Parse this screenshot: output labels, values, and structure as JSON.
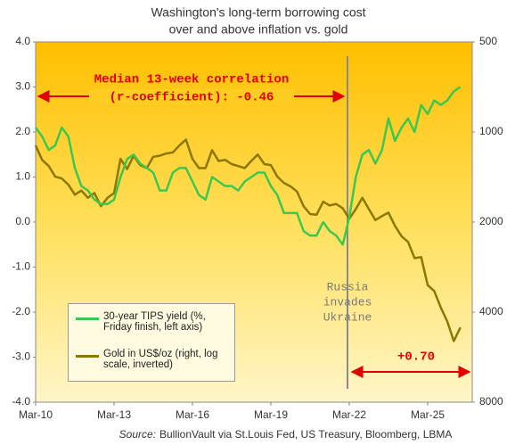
{
  "chart_data": {
    "type": "line",
    "title": [
      "Washington's long-term borrowing cost",
      "over and above inflation vs. gold"
    ],
    "categories": [
      "Mar-10",
      null,
      null,
      null,
      null,
      null,
      null,
      null,
      null,
      null,
      null,
      null,
      "Mar-13",
      null,
      null,
      null,
      null,
      null,
      null,
      null,
      null,
      null,
      null,
      null,
      "Mar-16",
      null,
      null,
      null,
      null,
      null,
      null,
      null,
      null,
      null,
      null,
      null,
      "Mar-19",
      null,
      null,
      null,
      null,
      null,
      null,
      null,
      null,
      null,
      null,
      null,
      "Mar-22",
      null,
      null,
      null,
      null,
      null,
      null,
      null,
      null,
      null,
      null,
      null,
      "Mar-25",
      null,
      null,
      null,
      null,
      null
    ],
    "series": [
      {
        "name": "30-year TIPS yield (%, Friday finish, left axis)",
        "color": "#3cc84e",
        "values": [
          2.1,
          1.9,
          1.6,
          1.7,
          2.1,
          1.9,
          1.2,
          0.8,
          0.7,
          0.5,
          0.4,
          0.4,
          0.5,
          1.0,
          1.4,
          1.5,
          1.3,
          1.2,
          1.1,
          0.7,
          0.7,
          1.1,
          1.2,
          1.2,
          0.9,
          0.6,
          0.5,
          1.0,
          0.9,
          0.8,
          0.8,
          0.7,
          0.9,
          1.0,
          1.1,
          1.1,
          0.8,
          0.6,
          0.2,
          0.2,
          0.2,
          -0.2,
          -0.3,
          -0.3,
          0.0,
          -0.2,
          -0.3,
          -0.5,
          0.1,
          1.0,
          1.5,
          1.6,
          1.3,
          1.6,
          2.3,
          1.8,
          2.1,
          2.3,
          2.0,
          2.6,
          2.4,
          2.7,
          2.6,
          2.7,
          2.9,
          3.0
        ]
      },
      {
        "name": "Gold in US$/oz (right, log scale, inverted)",
        "color": "#8a7800",
        "axis": "y2",
        "values": [
          1110,
          1240,
          1300,
          1410,
          1430,
          1500,
          1620,
          1570,
          1660,
          1600,
          1770,
          1660,
          1600,
          1230,
          1330,
          1200,
          1290,
          1320,
          1210,
          1200,
          1180,
          1170,
          1110,
          1060,
          1230,
          1320,
          1320,
          1150,
          1250,
          1240,
          1280,
          1300,
          1320,
          1250,
          1190,
          1280,
          1290,
          1410,
          1480,
          1520,
          1580,
          1770,
          1880,
          1890,
          1710,
          1760,
          1740,
          1800,
          1950,
          1810,
          1660,
          1810,
          1970,
          1910,
          1860,
          2060,
          2230,
          2330,
          2640,
          2620,
          3250,
          3400,
          3860,
          4300,
          5000,
          4500
        ]
      }
    ],
    "ylim": [
      -4,
      4
    ],
    "yticks": [
      {
        "value": -4,
        "label": "-4.0"
      },
      {
        "value": -3,
        "label": "-3.0"
      },
      {
        "value": -2,
        "label": "-2.0"
      },
      {
        "value": -1,
        "label": "-1.0"
      },
      {
        "value": 0,
        "label": "0.0"
      },
      {
        "value": 1,
        "label": "1.0"
      },
      {
        "value": 2,
        "label": "2.0"
      },
      {
        "value": 3,
        "label": "3.0"
      },
      {
        "value": 4,
        "label": "4.0"
      }
    ],
    "y2lim": [
      500,
      8000
    ],
    "y2ticks": [
      500,
      1000,
      2000,
      4000,
      8000
    ],
    "y2_log": true,
    "y2_inverted": true,
    "grid": false,
    "annotations": {
      "correlation_before": [
        "Median 13-week correlation",
        "(r-coefficient): -0.46"
      ],
      "event": [
        "Russia",
        "invades",
        "Ukraine"
      ],
      "correlation_after": "+0.70"
    },
    "source_label": "Source:",
    "source": "BullionVault via St.Louis Fed, US Treasury, Bloomberg, LBMA"
  }
}
